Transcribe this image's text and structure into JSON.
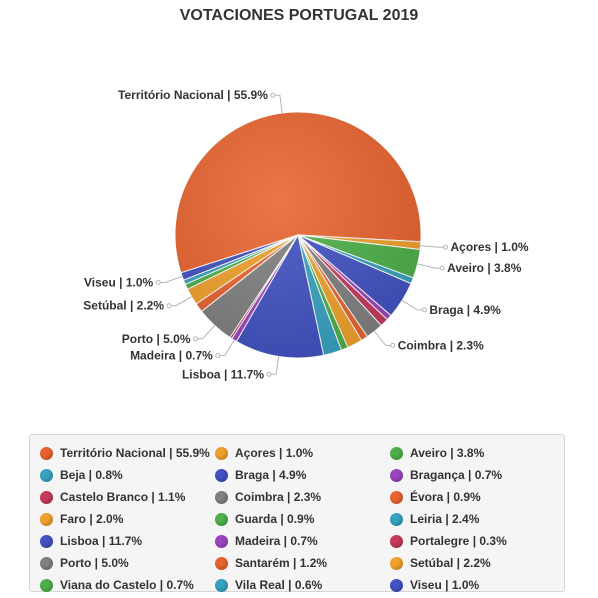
{
  "chart_data": {
    "type": "pie",
    "title": "VOTACIONES PORTUGAL 2019",
    "legend_position": "bottom",
    "slices": [
      {
        "name": "Território Nacional",
        "value": 55.9,
        "label": "Território Nacional | 55.9%",
        "color": "#e8642f"
      },
      {
        "name": "Açores",
        "value": 1.0,
        "label": "Açores | 1.0%",
        "color": "#f0a12c"
      },
      {
        "name": "Aveiro",
        "value": 3.8,
        "label": "Aveiro | 3.8%",
        "color": "#4db04a"
      },
      {
        "name": "Beja",
        "value": 0.8,
        "label": "Beja | 0.8%",
        "color": "#37a2c0"
      },
      {
        "name": "Braga",
        "value": 4.9,
        "label": "Braga | 4.9%",
        "color": "#4252c2"
      },
      {
        "name": "Bragança",
        "value": 0.7,
        "label": "Bragança | 0.7%",
        "color": "#9b45bf"
      },
      {
        "name": "Castelo Branco",
        "value": 1.1,
        "label": "Castelo Branco | 1.1%",
        "color": "#c53a5a"
      },
      {
        "name": "Coimbra",
        "value": 2.3,
        "label": "Coimbra | 2.3%",
        "color": "#808080"
      },
      {
        "name": "Évora",
        "value": 0.9,
        "label": "Évora | 0.9%",
        "color": "#e8642f"
      },
      {
        "name": "Faro",
        "value": 2.0,
        "label": "Faro | 2.0%",
        "color": "#f0a12c"
      },
      {
        "name": "Guarda",
        "value": 0.9,
        "label": "Guarda | 0.9%",
        "color": "#4db04a"
      },
      {
        "name": "Leiria",
        "value": 2.4,
        "label": "Leiria | 2.4%",
        "color": "#37a2c0"
      },
      {
        "name": "Lisboa",
        "value": 11.7,
        "label": "Lisboa | 11.7%",
        "color": "#4252c2"
      },
      {
        "name": "Madeira",
        "value": 0.7,
        "label": "Madeira | 0.7%",
        "color": "#9b45bf"
      },
      {
        "name": "Portalegre",
        "value": 0.3,
        "label": "Portalegre | 0.3%",
        "color": "#c53a5a"
      },
      {
        "name": "Porto",
        "value": 5.0,
        "label": "Porto | 5.0%",
        "color": "#808080"
      },
      {
        "name": "Santarém",
        "value": 1.2,
        "label": "Santarém | 1.2%",
        "color": "#e8642f"
      },
      {
        "name": "Setúbal",
        "value": 2.2,
        "label": "Setúbal | 2.2%",
        "color": "#f0a12c"
      },
      {
        "name": "Viana do Castelo",
        "value": 0.7,
        "label": "Viana do Castelo | 0.7%",
        "color": "#4db04a"
      },
      {
        "name": "Vila Real",
        "value": 0.6,
        "label": "Vila Real | 0.6%",
        "color": "#37a2c0"
      },
      {
        "name": "Viseu",
        "value": 1.0,
        "label": "Viseu | 1.0%",
        "color": "#4252c2"
      }
    ],
    "pie_labels": [
      "Território Nacional",
      "Açores",
      "Aveiro",
      "Braga",
      "Coimbra",
      "Lisboa",
      "Madeira",
      "Porto",
      "Setúbal",
      "Viseu"
    ]
  }
}
